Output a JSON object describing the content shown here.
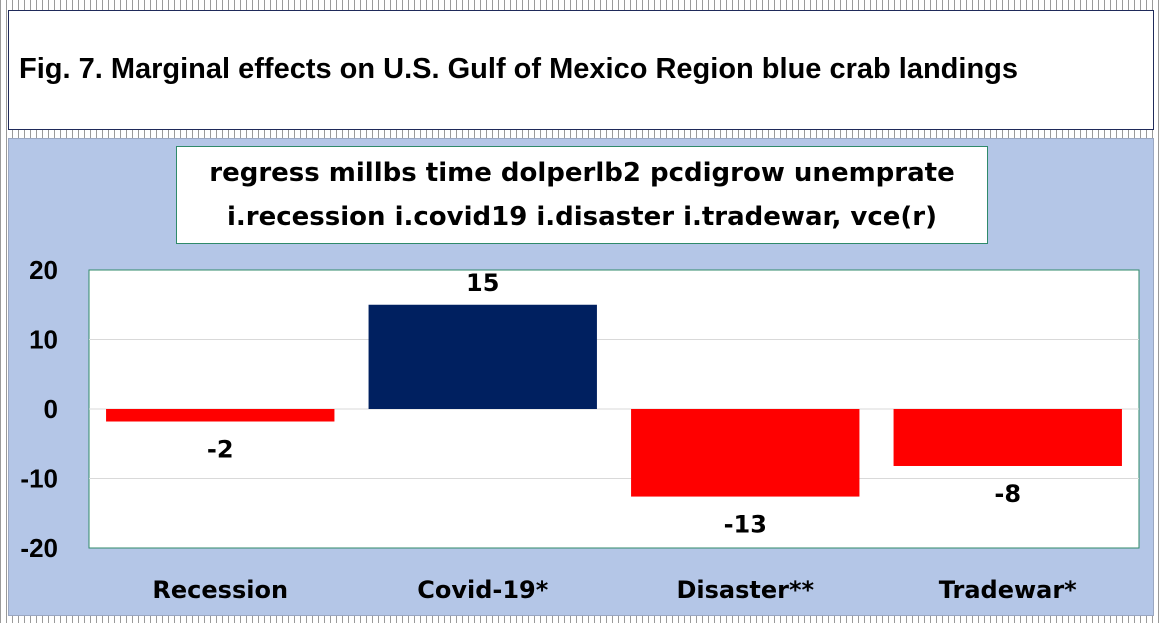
{
  "figure_title": "Fig. 7. Marginal effects on U.S. Gulf of Mexico Region blue crab landings",
  "chart_data": {
    "type": "bar",
    "title_lines": [
      "regress millbs time dolperlb2 pcdigrow unemprate",
      "i.recession i.covid19 i.disaster i.tradewar, vce(r)"
    ],
    "categories": [
      "Recession",
      "Covid-19*",
      "Disaster**",
      "Tradewar*"
    ],
    "values": [
      -1.8,
      15,
      -12.6,
      -8.2
    ],
    "data_labels": [
      "-2",
      "15",
      "-13",
      "-8"
    ],
    "bar_colors": [
      "#ff0000",
      "#002060",
      "#ff0000",
      "#ff0000"
    ],
    "ylim": [
      -20,
      20
    ],
    "yticks": [
      20,
      10,
      0,
      -10,
      -20
    ],
    "xlabel": "",
    "ylabel": "",
    "grid": true,
    "colors": {
      "chart_background": "#b4c6e7",
      "plot_background": "#ffffff",
      "negative": "#ff0000",
      "positive": "#002060"
    }
  }
}
